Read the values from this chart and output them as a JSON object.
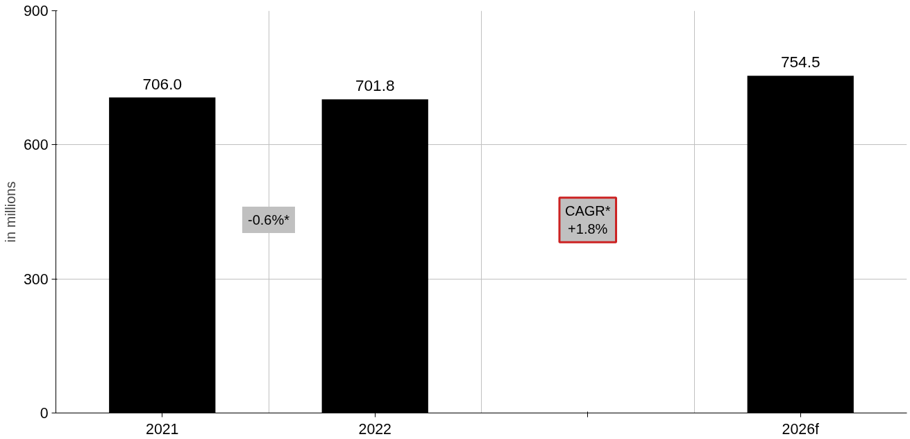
{
  "chart_data": {
    "type": "bar",
    "ylabel": "in millions",
    "categories": [
      "2021",
      "2022",
      null,
      "2026f"
    ],
    "values": [
      706.0,
      701.8,
      null,
      754.5
    ],
    "color": "#000000",
    "value_labels": [
      "706.0",
      "701.8",
      null,
      "754.5"
    ],
    "ylim": [
      0,
      900
    ],
    "yticks": [
      0,
      300,
      600,
      900
    ],
    "grid": true,
    "annotations": [
      "-0.6%*",
      "CAGR*\n+1.8%"
    ]
  }
}
